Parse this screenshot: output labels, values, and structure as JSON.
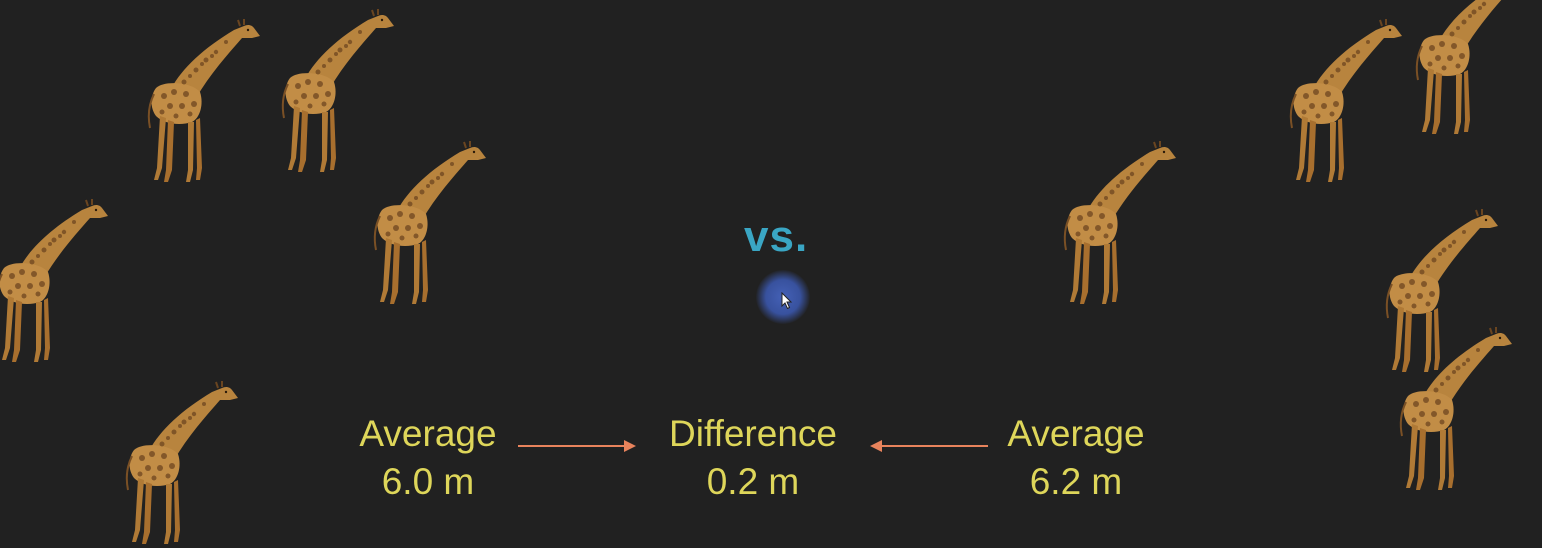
{
  "vs_label": "vs.",
  "left_stat": {
    "label": "Average",
    "value": "6.0 m"
  },
  "center_stat": {
    "label": "Difference",
    "value": "0.2 m"
  },
  "right_stat": {
    "label": "Average",
    "value": "6.2 m"
  },
  "colors": {
    "background": "#212121",
    "vs": "#3aa6c4",
    "stat_text": "#ded65a",
    "arrow": "#e8835c",
    "cursor_halo": "#4a64be"
  },
  "icons": [
    "giraffe-icon",
    "mouse-cursor-icon",
    "arrow-right-icon",
    "arrow-left-icon"
  ]
}
